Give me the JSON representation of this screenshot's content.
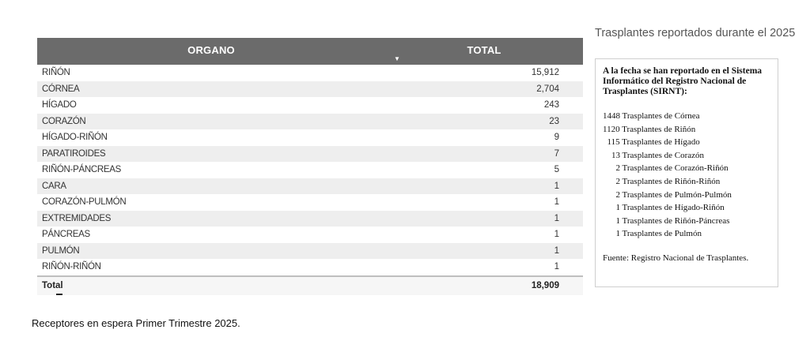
{
  "table": {
    "header_organo": "ORGANO",
    "header_total": "TOTAL",
    "sort_icon": "▼",
    "rows": [
      {
        "name": "RIÑÓN",
        "value": "15,912"
      },
      {
        "name": "CÓRNEA",
        "value": "2,704"
      },
      {
        "name": "HÍGADO",
        "value": "243"
      },
      {
        "name": "CORAZÓN",
        "value": "23"
      },
      {
        "name": "HÍGADO-RIÑÓN",
        "value": "9"
      },
      {
        "name": "PARATIROIDES",
        "value": "7"
      },
      {
        "name": "RIÑÓN-PÁNCREAS",
        "value": "5"
      },
      {
        "name": "CARA",
        "value": "1"
      },
      {
        "name": "CORAZÓN-PULMÓN",
        "value": "1"
      },
      {
        "name": "EXTREMIDADES",
        "value": "1"
      },
      {
        "name": "PÁNCREAS",
        "value": "1"
      },
      {
        "name": "PULMÓN",
        "value": "1"
      },
      {
        "name": "RIÑÓN-RIÑÓN",
        "value": "1"
      }
    ],
    "total_label": "Total",
    "total_value": "18,909"
  },
  "info": {
    "title": "Trasplantes reportados durante el 2025",
    "heading": "A la fecha se han reportado en el Sistema Informático del Registro Nacional de Trasplantes (SIRNT):",
    "items": [
      "1448 Trasplantes de Córnea",
      "1120 Trasplantes de Riñón",
      "115 Trasplantes de Hígado",
      "13 Trasplantes de Corazón",
      "2 Trasplantes de Corazón-Riñón",
      "2 Trasplantes de Riñón-Riñón",
      "2 Trasplantes de Pulmón-Pulmón",
      "1 Trasplantes de Hígado-Riñón",
      "1 Trasplantes de Riñón-Páncreas",
      "1 Trasplantes de Pulmón"
    ],
    "source": "Fuente: Registro Nacional de Trasplantes."
  },
  "caption": "Receptores en espera Primer Trimestre 2025."
}
